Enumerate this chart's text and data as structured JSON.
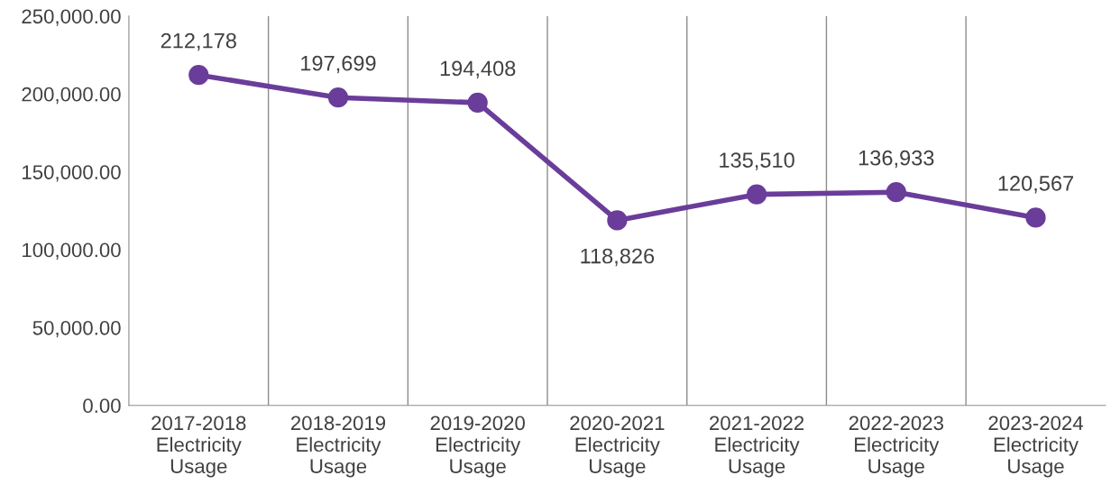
{
  "chart_data": {
    "type": "line",
    "categories": [
      "2017-2018\nElectricity\nUsage",
      "2018-2019\nElectricity\nUsage",
      "2019-2020\nElectricity\nUsage",
      "2020-2021\nElectricity\nUsage",
      "2021-2022\nElectricity\nUsage",
      "2022-2023\nElectricity\nUsage",
      "2023-2024\nElectricity\nUsage"
    ],
    "series": [
      {
        "color": "#6a3d9a",
        "values": [
          212178,
          197699,
          194408,
          118826,
          135510,
          136933,
          120567
        ],
        "value_labels": [
          "212,178",
          "197,699",
          "194,408",
          "118,826",
          "135,510",
          "136,933",
          "120,567"
        ]
      }
    ],
    "ylim": [
      0,
      250000
    ],
    "yticks": [
      {
        "value": 0,
        "label": "0.00"
      },
      {
        "value": 50000,
        "label": "50,000.00"
      },
      {
        "value": 100000,
        "label": "100,000.00"
      },
      {
        "value": 150000,
        "label": "150,000.00"
      },
      {
        "value": 200000,
        "label": "200,000.00"
      },
      {
        "value": 250000,
        "label": "250,000.00"
      }
    ],
    "grid": "x",
    "marker": "circle",
    "line_style": "solid",
    "legend": false
  }
}
